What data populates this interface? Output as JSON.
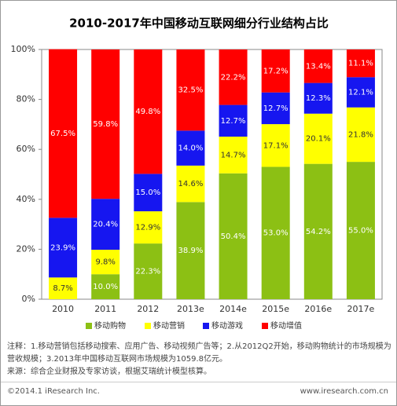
{
  "chart_data": {
    "type": "stacked_bar",
    "title": "2010-2017年中国移动互联网细分行业结构占比",
    "categories": [
      "2010",
      "2011",
      "2012",
      "2013e",
      "2014e",
      "2015e",
      "2016e",
      "2017e"
    ],
    "series": [
      {
        "name": "移动购物",
        "color": "#8cc014",
        "label_color": "#ffffff",
        "values": [
          null,
          10.0,
          22.3,
          38.9,
          50.4,
          53.0,
          54.2,
          55.0
        ],
        "value_labels": [
          null,
          "10.0%",
          "22.3%",
          "38.9%",
          "50.4%",
          "53.0%",
          "54.2%",
          "55.0%"
        ]
      },
      {
        "name": "移动营销",
        "color": "#ffff00",
        "label_color": "#333333",
        "values": [
          8.7,
          9.8,
          12.9,
          14.6,
          14.7,
          17.1,
          20.1,
          21.8
        ],
        "value_labels": [
          "8.7%",
          "9.8%",
          "12.9%",
          "14.6%",
          "14.7%",
          "17.1%",
          "20.1%",
          "21.8%"
        ]
      },
      {
        "name": "移动游戏",
        "color": "#1616f0",
        "label_color": "#ffffff",
        "values": [
          23.9,
          20.4,
          15.0,
          14.0,
          12.7,
          12.7,
          12.3,
          12.1
        ],
        "value_labels": [
          "23.9%",
          "20.4%",
          "15.0%",
          "14.0%",
          "12.7%",
          "12.7%",
          "12.3%",
          "12.1%"
        ]
      },
      {
        "name": "移动增值",
        "color": "#ff0000",
        "label_color": "#ffffff",
        "values": [
          67.5,
          59.8,
          49.8,
          32.5,
          22.2,
          17.2,
          13.4,
          11.1
        ],
        "value_labels": [
          "67.5%",
          "59.8%",
          "49.8%",
          "32.5%",
          "22.2%",
          "17.2%",
          "13.4%",
          "11.1%"
        ]
      }
    ],
    "ylim": [
      0,
      100
    ],
    "yticks": [
      {
        "value": 0,
        "label": "0%"
      },
      {
        "value": 20,
        "label": "20%"
      },
      {
        "value": 40,
        "label": "40%"
      },
      {
        "value": 60,
        "label": "60%"
      },
      {
        "value": 80,
        "label": "80%"
      },
      {
        "value": 100,
        "label": "100%"
      }
    ],
    "legend": "bottom"
  },
  "notes": [
    "注释：1.移动营销包括移动搜索、应用广告、移动视频广告等；2.从2012Q2开始，移动购物统计的市场规模为营收规模；3.2013年中国移动互联网市场规模为1059.8亿元。",
    "来源：综合企业财报及专家访谈，根据艾瑞统计模型核算。"
  ],
  "footer": {
    "copyright": "©2014.1 iResearch Inc.",
    "url": "www.iresearch.com.cn"
  }
}
